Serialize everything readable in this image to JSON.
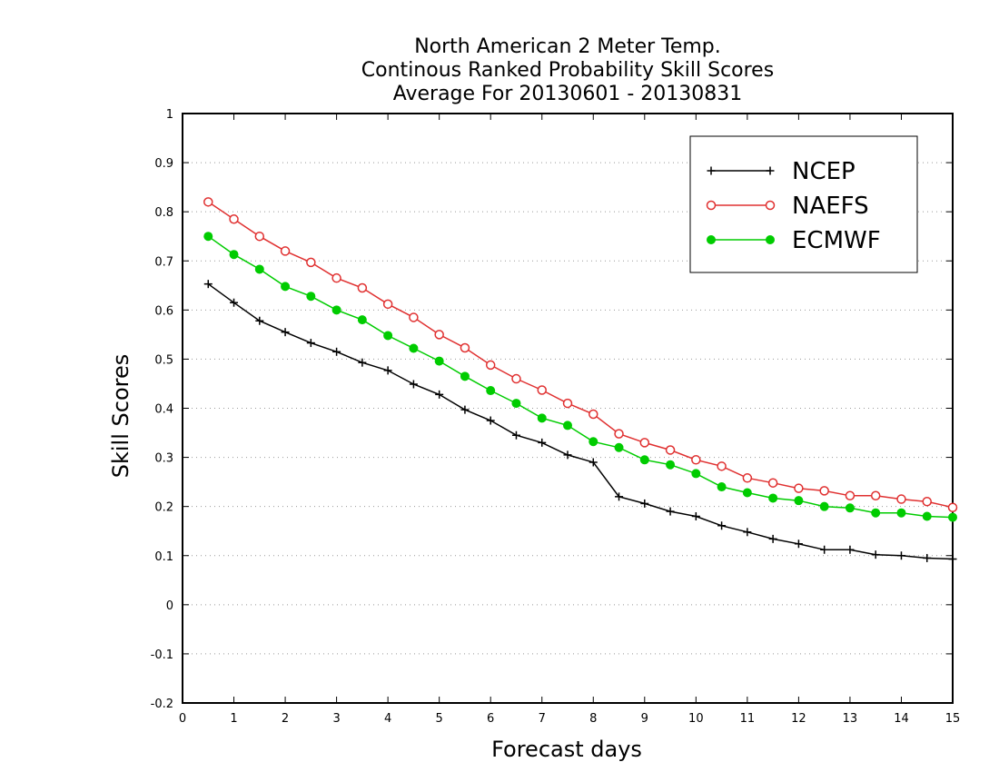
{
  "chart_data": {
    "type": "line",
    "title": [
      "North American 2 Meter Temp.",
      "Continous Ranked Probability Skill Scores",
      "Average For 20130601 - 20130831"
    ],
    "xlabel": "Forecast days",
    "ylabel": "Skill Scores",
    "xlim": [
      0,
      15
    ],
    "ylim": [
      -0.2,
      1
    ],
    "xticks": [
      0,
      1,
      2,
      3,
      4,
      5,
      6,
      7,
      8,
      9,
      10,
      11,
      12,
      13,
      14,
      15
    ],
    "yticks": [
      -0.2,
      -0.1,
      0,
      0.1,
      0.2,
      0.3,
      0.4,
      0.5,
      0.6,
      0.7,
      0.8,
      0.9,
      1
    ],
    "ytick_labels": [
      "-0.2",
      "-0.1",
      "0",
      "0.1",
      "0.2",
      "0.3",
      "0.4",
      "0.5",
      "0.6",
      "0.7",
      "0.8",
      "0.9",
      "1"
    ],
    "grid": "horizontal dotted",
    "legend": "top-right",
    "x": [
      0.5,
      1,
      1.5,
      2,
      2.5,
      3,
      3.5,
      4,
      4.5,
      5,
      5.5,
      6,
      6.5,
      7,
      7.5,
      8,
      8.5,
      9,
      9.5,
      10,
      10.5,
      11,
      11.5,
      12,
      12.5,
      13,
      13.5,
      14,
      14.5,
      15
    ],
    "series": [
      {
        "name": "NCEP",
        "color": "#000000",
        "marker": "plus",
        "values": [
          0.653,
          0.615,
          0.578,
          0.555,
          0.533,
          0.515,
          0.493,
          0.477,
          0.449,
          0.428,
          0.397,
          0.375,
          0.345,
          0.33,
          0.305,
          0.29,
          0.22,
          0.206,
          0.19,
          0.18,
          0.161,
          0.148,
          0.134,
          0.124,
          0.112,
          0.112,
          0.102,
          0.1,
          0.095,
          0.093
        ]
      },
      {
        "name": "NAEFS",
        "color": "#e03030",
        "marker": "open-circle",
        "values": [
          0.82,
          0.785,
          0.75,
          0.72,
          0.697,
          0.665,
          0.645,
          0.612,
          0.585,
          0.55,
          0.523,
          0.488,
          0.46,
          0.437,
          0.41,
          0.388,
          0.348,
          0.33,
          0.315,
          0.295,
          0.282,
          0.258,
          0.248,
          0.237,
          0.232,
          0.222,
          0.222,
          0.215,
          0.21,
          0.198
        ]
      },
      {
        "name": "ECMWF",
        "color": "#00cc00",
        "marker": "filled-circle",
        "values": [
          0.75,
          0.713,
          0.683,
          0.648,
          0.628,
          0.6,
          0.58,
          0.548,
          0.522,
          0.496,
          0.465,
          0.436,
          0.41,
          0.38,
          0.365,
          0.332,
          0.32,
          0.295,
          0.285,
          0.267,
          0.24,
          0.228,
          0.217,
          0.212,
          0.2,
          0.197,
          0.187,
          0.187,
          0.18,
          0.178
        ]
      }
    ]
  }
}
